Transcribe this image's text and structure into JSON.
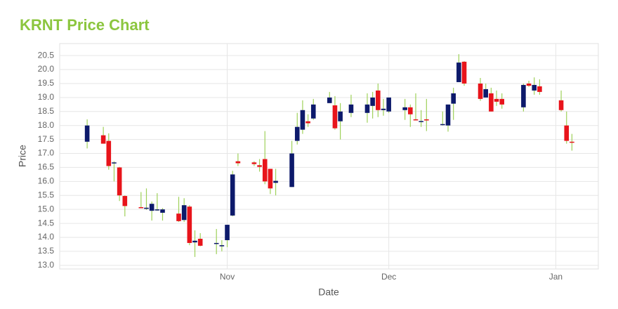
{
  "chart_data": {
    "type": "candlestick",
    "title": "KRNT Price Chart",
    "x_label": "Date",
    "y_label": "Price",
    "categories": [
      null,
      null,
      null,
      null,
      null,
      null,
      null,
      null,
      null,
      null,
      null,
      null,
      null,
      null,
      null,
      null,
      null,
      null,
      null,
      null,
      null,
      null,
      null,
      null,
      null,
      null,
      "Nov",
      null,
      null,
      null,
      null,
      null,
      null,
      null,
      null,
      null,
      null,
      null,
      null,
      null,
      null,
      null,
      null,
      null,
      null,
      null,
      null,
      null,
      null,
      null,
      null,
      null,
      null,
      null,
      null,
      null,
      "Dec",
      null,
      null,
      null,
      null,
      null,
      null,
      null,
      null,
      null,
      null,
      null,
      null,
      null,
      null,
      null,
      null,
      null,
      null,
      null,
      null,
      null,
      null,
      null,
      null,
      null,
      null,
      null,
      null,
      null,
      null,
      "Jan",
      null,
      null,
      null
    ],
    "open": [
      17.42,
      null,
      null,
      17.65,
      17.45,
      16.65,
      16.5,
      15.48,
      null,
      null,
      15.08,
      15.02,
      14.95,
      14.98,
      14.88,
      null,
      null,
      14.85,
      14.62,
      15.1,
      13.82,
      13.95,
      null,
      null,
      13.78,
      13.68,
      13.9,
      14.78,
      16.72,
      null,
      null,
      16.68,
      16.58,
      16.8,
      16.45,
      15.95,
      null,
      null,
      15.8,
      17.45,
      17.85,
      18.15,
      18.25,
      null,
      null,
      18.8,
      18.72,
      18.15,
      null,
      18.45,
      null,
      null,
      18.45,
      18.7,
      19.25,
      18.55,
      18.5,
      null,
      null,
      18.55,
      18.65,
      18.22,
      18.15,
      18.22,
      null,
      null,
      18.02,
      18.0,
      18.78,
      19.55,
      20.28,
      null,
      null,
      19.5,
      19.0,
      19.15,
      18.95,
      18.95,
      null,
      null,
      null,
      18.65,
      19.5,
      19.25,
      19.4,
      null,
      null,
      null,
      18.9,
      18.0,
      17.42
    ],
    "high": [
      18.22,
      null,
      null,
      17.95,
      17.72,
      16.72,
      16.52,
      15.5,
      null,
      null,
      15.62,
      15.75,
      15.28,
      15.58,
      15.05,
      null,
      null,
      15.45,
      15.4,
      15.15,
      14.25,
      14.15,
      null,
      null,
      14.3,
      13.9,
      14.45,
      16.38,
      17.0,
      null,
      null,
      16.72,
      16.8,
      17.8,
      16.45,
      16.45,
      null,
      null,
      17.45,
      18.45,
      18.9,
      18.4,
      18.95,
      null,
      null,
      19.2,
      19.05,
      18.8,
      null,
      19.1,
      null,
      null,
      19.15,
      19.2,
      19.5,
      18.95,
      19.0,
      null,
      null,
      18.95,
      18.75,
      19.15,
      18.55,
      18.95,
      null,
      null,
      18.5,
      18.75,
      19.35,
      20.55,
      20.3,
      null,
      null,
      19.7,
      19.5,
      19.35,
      19.25,
      19.15,
      null,
      null,
      null,
      19.5,
      19.6,
      19.72,
      19.65,
      null,
      null,
      null,
      19.25,
      18.5,
      17.7
    ],
    "low": [
      17.18,
      null,
      null,
      17.35,
      16.42,
      16.0,
      15.3,
      14.75,
      null,
      null,
      15.05,
      14.98,
      14.6,
      14.95,
      14.6,
      null,
      null,
      14.55,
      14.55,
      13.72,
      13.3,
      13.68,
      null,
      null,
      13.4,
      13.5,
      13.65,
      14.75,
      16.55,
      null,
      null,
      16.55,
      16.35,
      15.9,
      15.55,
      15.5,
      null,
      null,
      15.8,
      17.32,
      17.7,
      17.95,
      18.2,
      null,
      null,
      18.8,
      17.85,
      17.5,
      null,
      18.3,
      null,
      null,
      18.1,
      18.25,
      18.3,
      18.35,
      18.45,
      null,
      null,
      18.2,
      17.95,
      18.18,
      17.95,
      17.8,
      null,
      null,
      18.0,
      17.78,
      18.2,
      19.55,
      19.42,
      null,
      null,
      18.88,
      19.0,
      18.5,
      18.7,
      18.6,
      null,
      null,
      null,
      18.5,
      19.38,
      19.1,
      19.1,
      null,
      null,
      null,
      18.5,
      17.35,
      17.1
    ],
    "close": [
      18.0,
      null,
      null,
      17.35,
      16.55,
      16.68,
      15.5,
      15.12,
      null,
      null,
      15.05,
      15.06,
      15.2,
      15.0,
      15.0,
      null,
      null,
      14.58,
      15.15,
      13.8,
      13.88,
      13.7,
      null,
      null,
      13.8,
      13.72,
      14.45,
      16.25,
      16.65,
      null,
      null,
      16.62,
      16.52,
      16.0,
      15.75,
      16.02,
      null,
      null,
      17.0,
      17.95,
      18.55,
      18.08,
      18.75,
      null,
      null,
      19.0,
      17.9,
      18.5,
      null,
      18.75,
      null,
      null,
      18.75,
      19.0,
      18.55,
      18.6,
      19.0,
      null,
      null,
      18.65,
      18.4,
      18.2,
      18.16,
      18.18,
      null,
      null,
      18.05,
      18.75,
      19.15,
      20.25,
      19.5,
      null,
      null,
      18.95,
      19.3,
      18.5,
      18.85,
      18.75,
      null,
      null,
      null,
      19.45,
      19.42,
      19.45,
      19.2,
      null,
      null,
      null,
      18.55,
      17.45,
      17.4
    ],
    "ylim": [
      12.87,
      20.93
    ],
    "yticks": [
      {
        "value": 13,
        "label": "13.0"
      },
      13.5,
      {
        "value": 14,
        "label": "14.0"
      },
      14.5,
      {
        "value": 15,
        "label": "15.0"
      },
      15.5,
      {
        "value": 16,
        "label": "16.0"
      },
      16.5,
      {
        "value": 17,
        "label": "17.0"
      },
      17.5,
      {
        "value": 18,
        "label": "18.0"
      },
      18.5,
      {
        "value": 19,
        "label": "19.0"
      },
      19.5,
      {
        "value": 20,
        "label": "20.0"
      },
      20.5
    ],
    "grid": true,
    "up_color": "#0d1a6b",
    "down_color": "#e8141b",
    "wick_color": "#9fd15a",
    "title_color": "#8cc63f"
  }
}
